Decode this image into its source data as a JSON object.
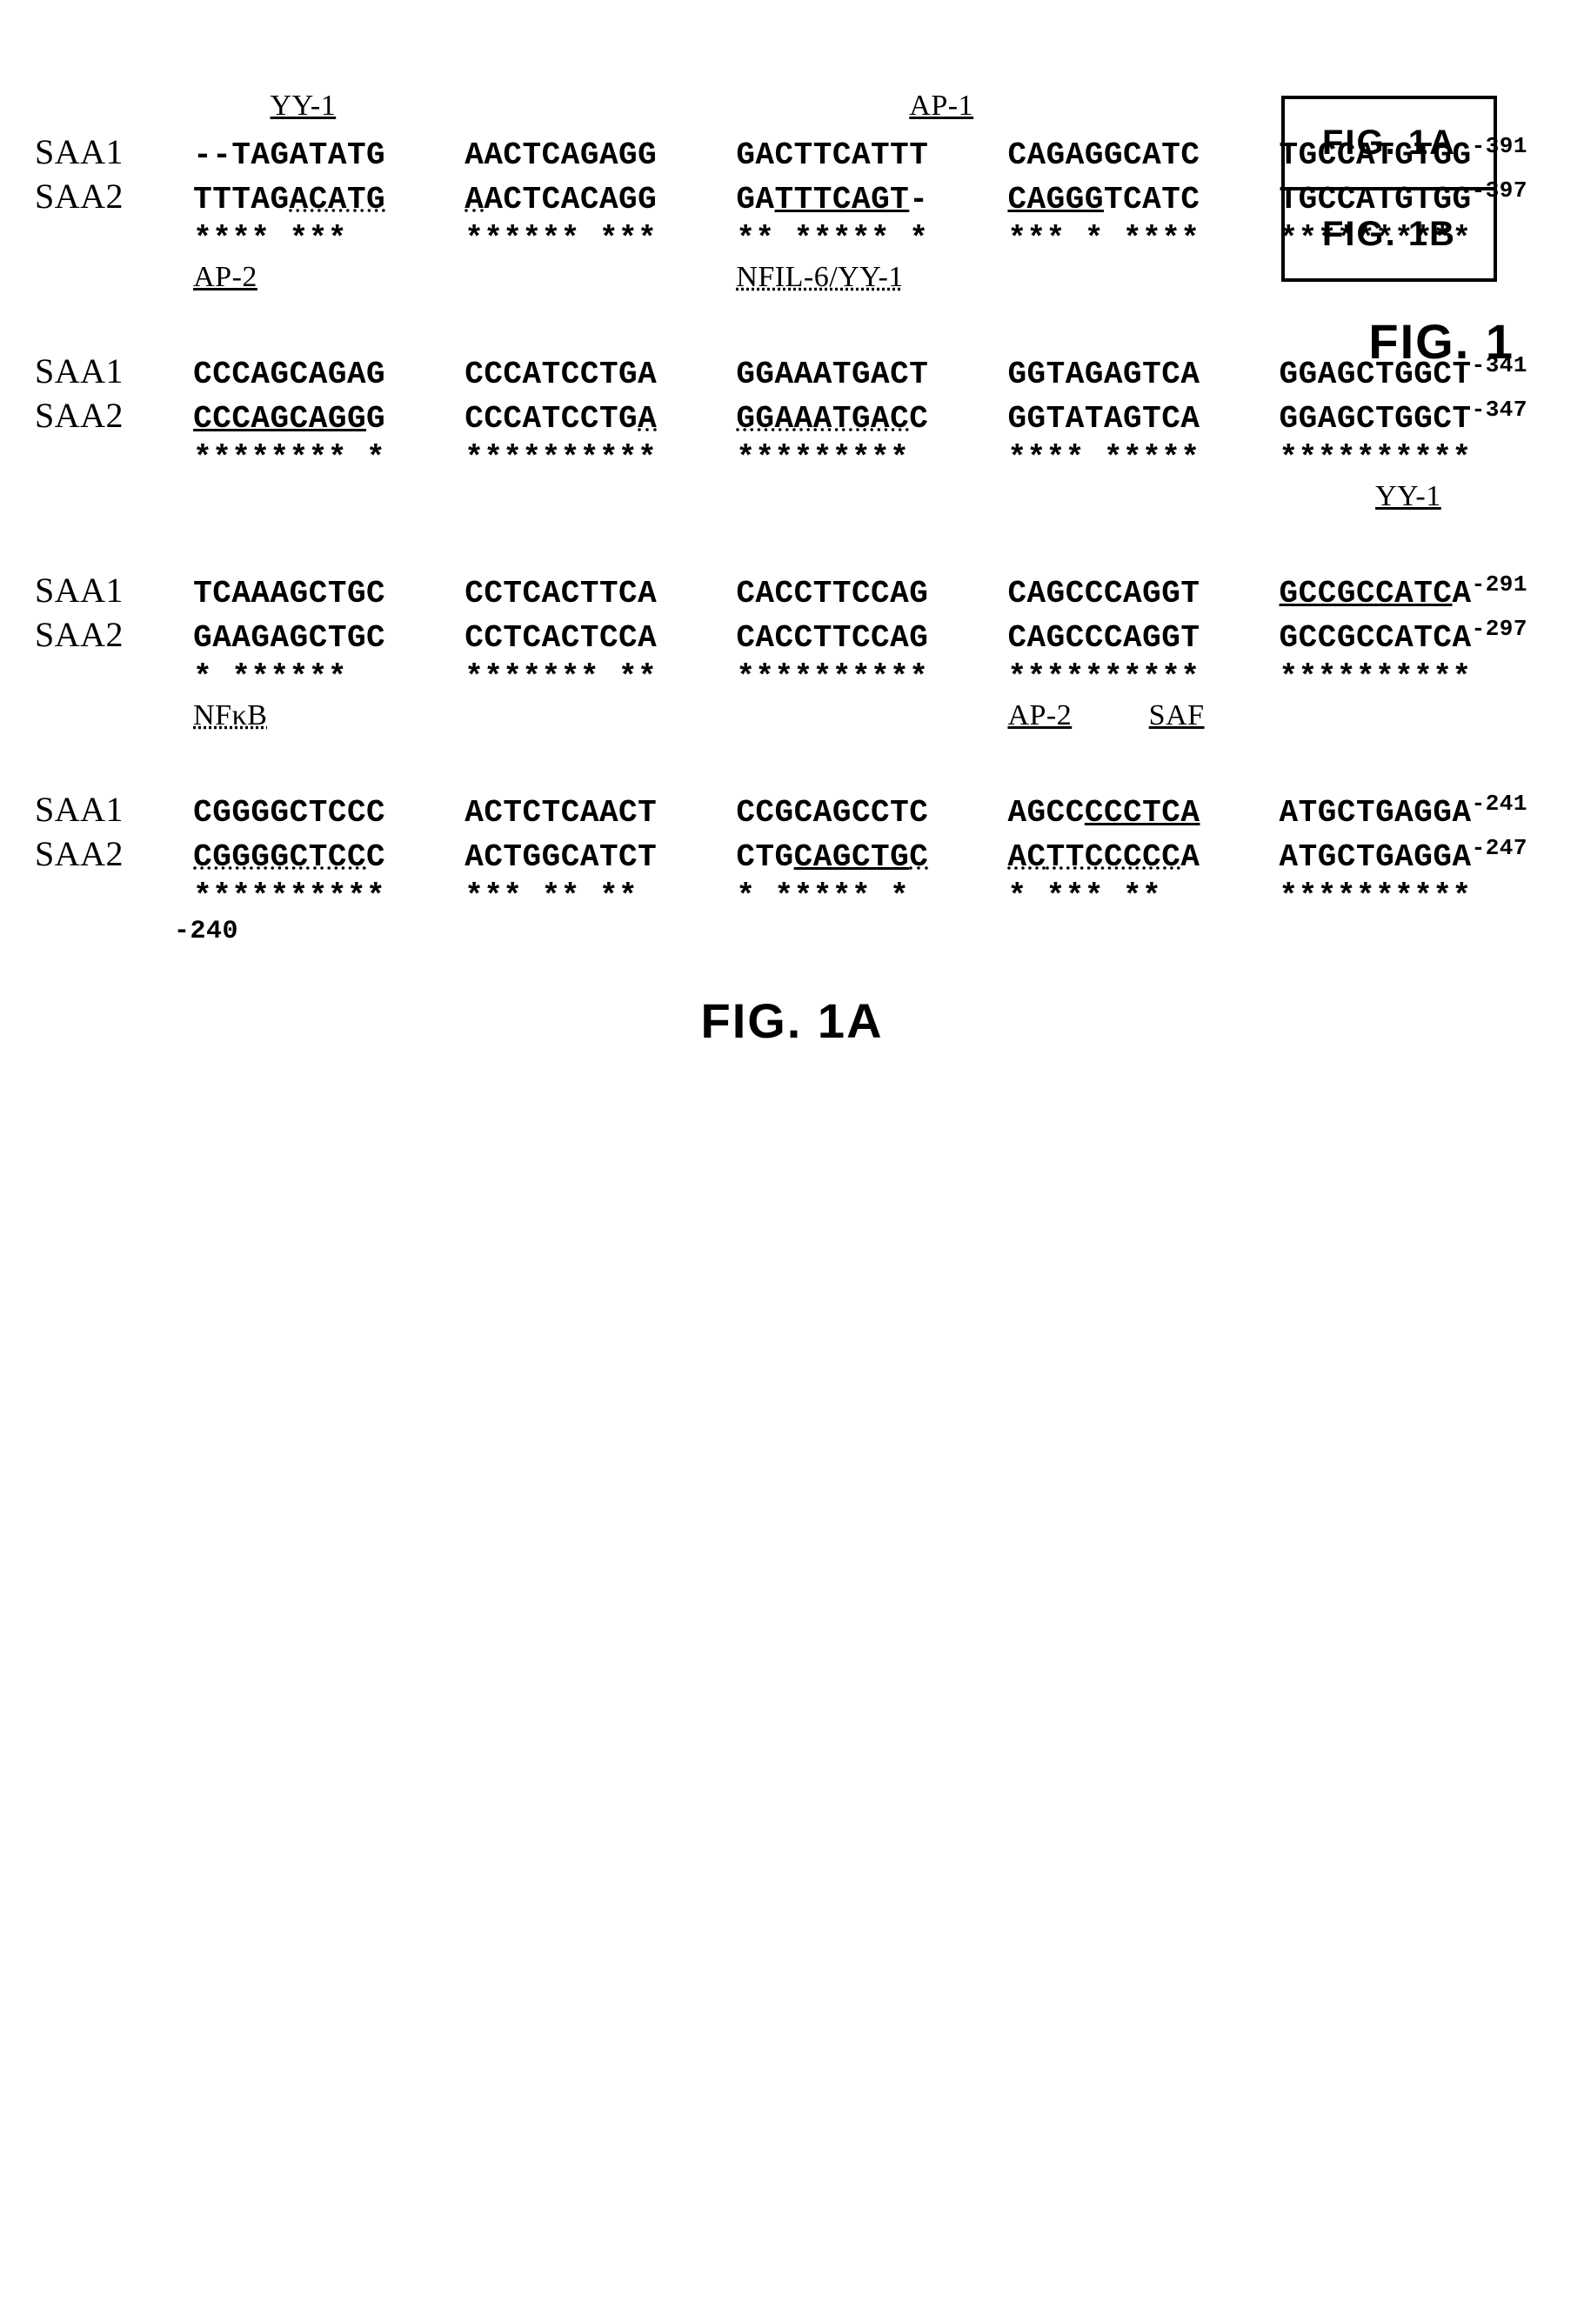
{
  "legend": {
    "top": "FIG. 1A",
    "bottom": "FIG. 1B"
  },
  "fig_label_main": "FIG. 1",
  "bottom_label": "FIG. 1A",
  "pos_marker": "-240",
  "block1": {
    "header_yy1": "YY-1",
    "header_ap1": "AP-1",
    "saa1_label": "SAA1",
    "saa2_label": "SAA2",
    "saa1_c1": "--TAGATATG",
    "saa1_c2": "AACTCAGAGG",
    "saa1_c3": "GACTTCATTT",
    "saa1_c4": "CAGAGGCATC",
    "saa1_c5": "TGCCATGTGG",
    "saa1_pos": "-391",
    "saa2_c1a": "TTTAG",
    "saa2_c1b": "ACATG",
    "saa2_c2a": "A",
    "saa2_c2b": "ACT",
    "saa2_c2c": "CACAGG",
    "saa2_c3a": "GA",
    "saa2_c3b": "TTTCAGT",
    "saa2_c3c": "-",
    "saa2_c4a": "CAGGG",
    "saa2_c4b": "TCATC",
    "saa2_c5": "TGCCATGTGG",
    "saa2_pos": "-397",
    "stars_c1": "**** ***",
    "stars_c2": "****** ***",
    "stars_c3": "** ***** *",
    "stars_c4": "*** * ****",
    "stars_c5": "**********",
    "site_ap2": "AP-2",
    "site_nfil6_yy1": "NFIL-6/YY-1"
  },
  "block2": {
    "saa1_c1": "CCCAGCAGAG",
    "saa1_c2": "CCCATCCTGA",
    "saa1_c3": "GGAAATGACT",
    "saa1_c4": "GGTAGAGTCA",
    "saa1_c5": "GGAGCTGGCT",
    "saa1_pos": "-341",
    "saa2_c1a": "CCCAGCAGG",
    "saa2_c1b": "G",
    "saa2_c2a": "CCCATCCTG",
    "saa2_c2b": "A",
    "saa2_c3a": "GGAAATGAC",
    "saa2_c3b": "C",
    "saa2_c4": "GGTATAGTCA",
    "saa2_c5": "GGAGCTGGCT",
    "saa2_pos": "-347",
    "stars_c1": "******** *",
    "stars_c2": "**********",
    "stars_c3": "*********",
    "stars_c4": "****  *****",
    "stars_c5": "**********",
    "site_yy1": "YY-1"
  },
  "block3": {
    "saa1_c1": "TCAAAGCTGC",
    "saa1_c2": "CCTCACTTCA",
    "saa1_c3": "CACCTTCCAG",
    "saa1_c4": "CAGCCCAGGT",
    "saa1_c5a": "GCCGCCATC",
    "saa1_c5b": "A",
    "saa1_pos": "-291",
    "saa2_c1": "GAAGAGCTGC",
    "saa2_c2": "CCTCACTCCA",
    "saa2_c3": "CACCTTCCAG",
    "saa2_c4": "CAGCCCAGGT",
    "saa2_c5": "GCCGCCATCA",
    "saa2_pos": "-297",
    "stars_c1": " * ******",
    "stars_c2": "******* **",
    "stars_c3": "**********",
    "stars_c4": "**********",
    "stars_c5": "**********",
    "site_nfkb": "NFκB",
    "site_ap2": "AP-2",
    "site_saf": "SAF"
  },
  "block4": {
    "saa1_c1": "CGGGGCTCCC",
    "saa1_c2": "ACTCTCAACT",
    "saa1_c3": "CCGCAGCCTC",
    "saa1_c4a": "AGCC",
    "saa1_c4b": "CCCTCA",
    "saa1_c5": "ATGCTGAGGA",
    "saa1_pos": "-241",
    "saa2_c1a": "CGGGGCTCC",
    "saa2_c1b": "C",
    "saa2_c2": "ACTGGCATCT",
    "saa2_c3a": "CTG",
    "saa2_c3b": "CAGCTG",
    "saa2_c3c": "C",
    "saa2_c4a": "AC",
    "saa2_c4b": "TTCCCCC",
    "saa2_c4c": "A",
    "saa2_c5": "ATGCTGAGGA",
    "saa2_pos": "-247",
    "stars_c1": "**********",
    "stars_c2": "*** ** **",
    "stars_c3": "* ***** *",
    "stars_c4": "*   *** **",
    "stars_c5": "**********"
  }
}
